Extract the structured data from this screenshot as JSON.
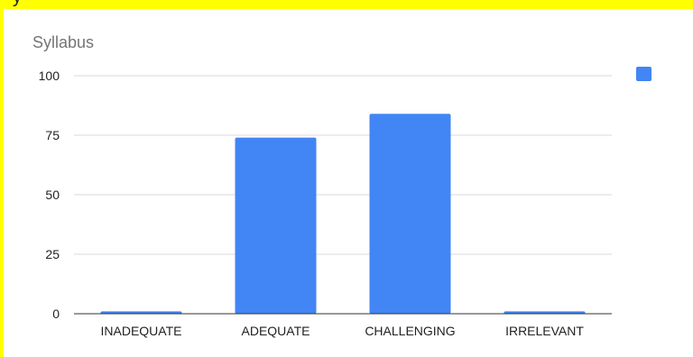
{
  "page": {
    "top_strip_text": "y"
  },
  "colors": {
    "frame": "#ffff00",
    "bar": "#4285f4",
    "legend_swatch": "#4285f4"
  },
  "chart_data": {
    "type": "bar",
    "title": "Syllabus",
    "xlabel": "",
    "ylabel": "",
    "categories": [
      "INADEQUATE",
      "ADEQUATE",
      "CHALLENGING",
      "IRRELEVANT"
    ],
    "series": [
      {
        "values": [
          1,
          74,
          84,
          1
        ]
      }
    ],
    "ylim": [
      0,
      100
    ],
    "yticks": [
      0,
      25,
      50,
      75,
      100
    ],
    "grid": true,
    "legend": "top-right"
  }
}
